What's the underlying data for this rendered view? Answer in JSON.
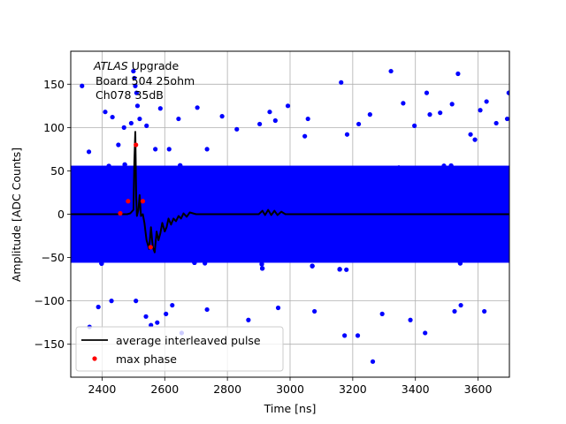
{
  "chart_data": {
    "type": "scatter",
    "title": "",
    "xlabel": "Time [ns]",
    "ylabel": "Amplitude [ADC Counts]",
    "xlim": [
      2300,
      3700
    ],
    "ylim": [
      -188,
      188
    ],
    "xticks": [
      2400,
      2600,
      2800,
      3000,
      3200,
      3400,
      3600
    ],
    "yticks": [
      -150,
      -100,
      -50,
      0,
      50,
      100,
      150
    ],
    "grid": true,
    "legend_position": "lower-left",
    "annotation": {
      "italic": "ATLAS",
      "line1_rest": " Upgrade",
      "line2": " Board 504 25ohm",
      "line3": " Ch078 35dB"
    },
    "series": [
      {
        "name": "",
        "kind": "scatter",
        "color": "#0000ff",
        "description_band": {
          "x_range": [
            2300,
            3700
          ],
          "y_range": [
            -60,
            60
          ]
        },
        "outliers": [
          [
            2336,
            148
          ],
          [
            2358,
            72
          ],
          [
            2410,
            118
          ],
          [
            2433,
            112
          ],
          [
            2452,
            80
          ],
          [
            2470,
            100
          ],
          [
            2500,
            165
          ],
          [
            2503,
            157
          ],
          [
            2506,
            148
          ],
          [
            2510,
            140
          ],
          [
            2513,
            125
          ],
          [
            2493,
            105
          ],
          [
            2520,
            110
          ],
          [
            2542,
            102
          ],
          [
            2570,
            75
          ],
          [
            2586,
            122
          ],
          [
            2614,
            75
          ],
          [
            2644,
            110
          ],
          [
            2704,
            123
          ],
          [
            2735,
            75
          ],
          [
            2783,
            113
          ],
          [
            2830,
            98
          ],
          [
            2903,
            104
          ],
          [
            2935,
            118
          ],
          [
            2953,
            108
          ],
          [
            2993,
            125
          ],
          [
            3047,
            90
          ],
          [
            3057,
            110
          ],
          [
            3163,
            152
          ],
          [
            3182,
            92
          ],
          [
            3219,
            104
          ],
          [
            3255,
            115
          ],
          [
            3322,
            165
          ],
          [
            3361,
            128
          ],
          [
            3397,
            102
          ],
          [
            3436,
            140
          ],
          [
            3446,
            115
          ],
          [
            3479,
            117
          ],
          [
            3517,
            127
          ],
          [
            3536,
            162
          ],
          [
            3576,
            92
          ],
          [
            3590,
            86
          ],
          [
            3607,
            120
          ],
          [
            3627,
            130
          ],
          [
            3658,
            105
          ],
          [
            3698,
            140
          ],
          [
            3693,
            110
          ],
          [
            2360,
            -130
          ],
          [
            2388,
            -107
          ],
          [
            2430,
            -100
          ],
          [
            2508,
            -100
          ],
          [
            2540,
            -118
          ],
          [
            2556,
            -128
          ],
          [
            2576,
            -125
          ],
          [
            2604,
            -115
          ],
          [
            2624,
            -105
          ],
          [
            2654,
            -137
          ],
          [
            2735,
            -110
          ],
          [
            2867,
            -122
          ],
          [
            2962,
            -108
          ],
          [
            3078,
            -112
          ],
          [
            3174,
            -140
          ],
          [
            3216,
            -140
          ],
          [
            3264,
            -170
          ],
          [
            3294,
            -115
          ],
          [
            3384,
            -122
          ],
          [
            3431,
            -137
          ],
          [
            3525,
            -112
          ],
          [
            3545,
            -105
          ],
          [
            3620,
            -112
          ]
        ]
      },
      {
        "name": "average interleaved pulse",
        "kind": "line",
        "color": "#000000",
        "points": [
          [
            2300,
            0
          ],
          [
            2480,
            0
          ],
          [
            2490,
            1
          ],
          [
            2500,
            5
          ],
          [
            2503,
            60
          ],
          [
            2506,
            95
          ],
          [
            2509,
            20
          ],
          [
            2511,
            -2
          ],
          [
            2516,
            5
          ],
          [
            2520,
            22
          ],
          [
            2524,
            -2
          ],
          [
            2530,
            0
          ],
          [
            2535,
            -10
          ],
          [
            2542,
            -30
          ],
          [
            2550,
            -40
          ],
          [
            2556,
            -15
          ],
          [
            2562,
            -38
          ],
          [
            2568,
            -44
          ],
          [
            2574,
            -20
          ],
          [
            2580,
            -30
          ],
          [
            2586,
            -22
          ],
          [
            2592,
            -10
          ],
          [
            2600,
            -20
          ],
          [
            2606,
            -15
          ],
          [
            2612,
            -5
          ],
          [
            2620,
            -12
          ],
          [
            2628,
            -5
          ],
          [
            2636,
            -8
          ],
          [
            2644,
            -2
          ],
          [
            2652,
            -5
          ],
          [
            2660,
            1
          ],
          [
            2670,
            -3
          ],
          [
            2680,
            2
          ],
          [
            2700,
            0
          ],
          [
            2900,
            0
          ],
          [
            2912,
            4
          ],
          [
            2920,
            -1
          ],
          [
            2930,
            5
          ],
          [
            2940,
            -1
          ],
          [
            2950,
            4
          ],
          [
            2960,
            -1
          ],
          [
            2972,
            3
          ],
          [
            2985,
            0
          ],
          [
            3700,
            0
          ]
        ]
      },
      {
        "name": "max phase",
        "kind": "points",
        "color": "#ff0000",
        "points": [
          [
            2458,
            1
          ],
          [
            2483,
            15
          ],
          [
            2508,
            80
          ],
          [
            2530,
            15
          ],
          [
            2555,
            -38
          ]
        ]
      }
    ]
  }
}
